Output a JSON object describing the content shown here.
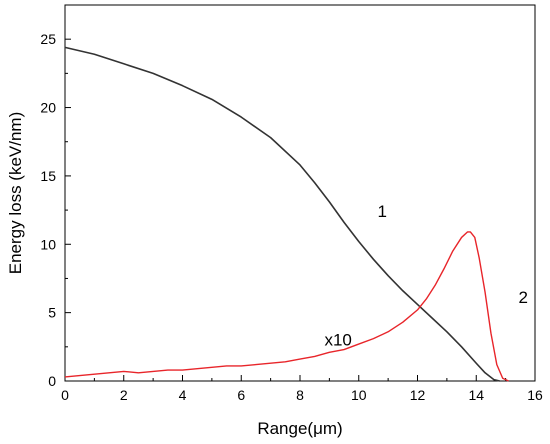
{
  "chart_data": {
    "type": "line",
    "xlabel": "Range(μm)",
    "ylabel": "Energy loss (keV/nm)",
    "xlim": [
      0,
      16
    ],
    "ylim": [
      0,
      27.5
    ],
    "x_ticks": [
      "0",
      "2",
      "4",
      "6",
      "8",
      "10",
      "12",
      "14",
      "16"
    ],
    "y_ticks": [
      "0",
      "5",
      "10",
      "15",
      "20",
      "25"
    ],
    "grid": false,
    "annotations": [
      {
        "text": "1",
        "x": 10.8,
        "y": 12.0
      },
      {
        "text": "2",
        "x": 15.6,
        "y": 5.7
      },
      {
        "text": "x10",
        "x": 9.3,
        "y": 2.6
      }
    ],
    "series": [
      {
        "color": "#333333",
        "x": [
          0.0,
          1.0,
          2.0,
          3.0,
          4.0,
          5.0,
          6.0,
          7.0,
          8.0,
          8.5,
          9.0,
          9.5,
          10.0,
          10.5,
          11.0,
          11.5,
          12.0,
          12.5,
          13.0,
          13.5,
          14.0,
          14.3,
          14.6,
          14.8
        ],
        "y": [
          24.4,
          23.9,
          23.2,
          22.5,
          21.6,
          20.6,
          19.3,
          17.8,
          15.8,
          14.5,
          13.1,
          11.6,
          10.2,
          8.9,
          7.7,
          6.6,
          5.6,
          4.6,
          3.6,
          2.5,
          1.3,
          0.6,
          0.1,
          0.0
        ]
      },
      {
        "color": "#e8252a",
        "x": [
          0.0,
          0.5,
          1.0,
          1.5,
          2.0,
          2.5,
          3.0,
          3.5,
          4.0,
          4.5,
          5.0,
          5.5,
          6.0,
          6.5,
          7.0,
          7.5,
          8.0,
          8.5,
          9.0,
          9.5,
          10.0,
          10.5,
          11.0,
          11.5,
          12.0,
          12.3,
          12.6,
          12.9,
          13.2,
          13.5,
          13.7,
          13.8,
          13.95,
          14.1,
          14.3,
          14.5,
          14.7,
          14.9,
          15.1
        ],
        "y": [
          0.3,
          0.4,
          0.5,
          0.6,
          0.7,
          0.6,
          0.7,
          0.8,
          0.8,
          0.9,
          1.0,
          1.1,
          1.1,
          1.2,
          1.3,
          1.4,
          1.6,
          1.8,
          2.1,
          2.3,
          2.7,
          3.1,
          3.6,
          4.3,
          5.2,
          6.0,
          7.0,
          8.2,
          9.5,
          10.5,
          10.9,
          10.9,
          10.5,
          9.0,
          6.5,
          3.5,
          1.2,
          0.2,
          0.0
        ]
      }
    ]
  }
}
